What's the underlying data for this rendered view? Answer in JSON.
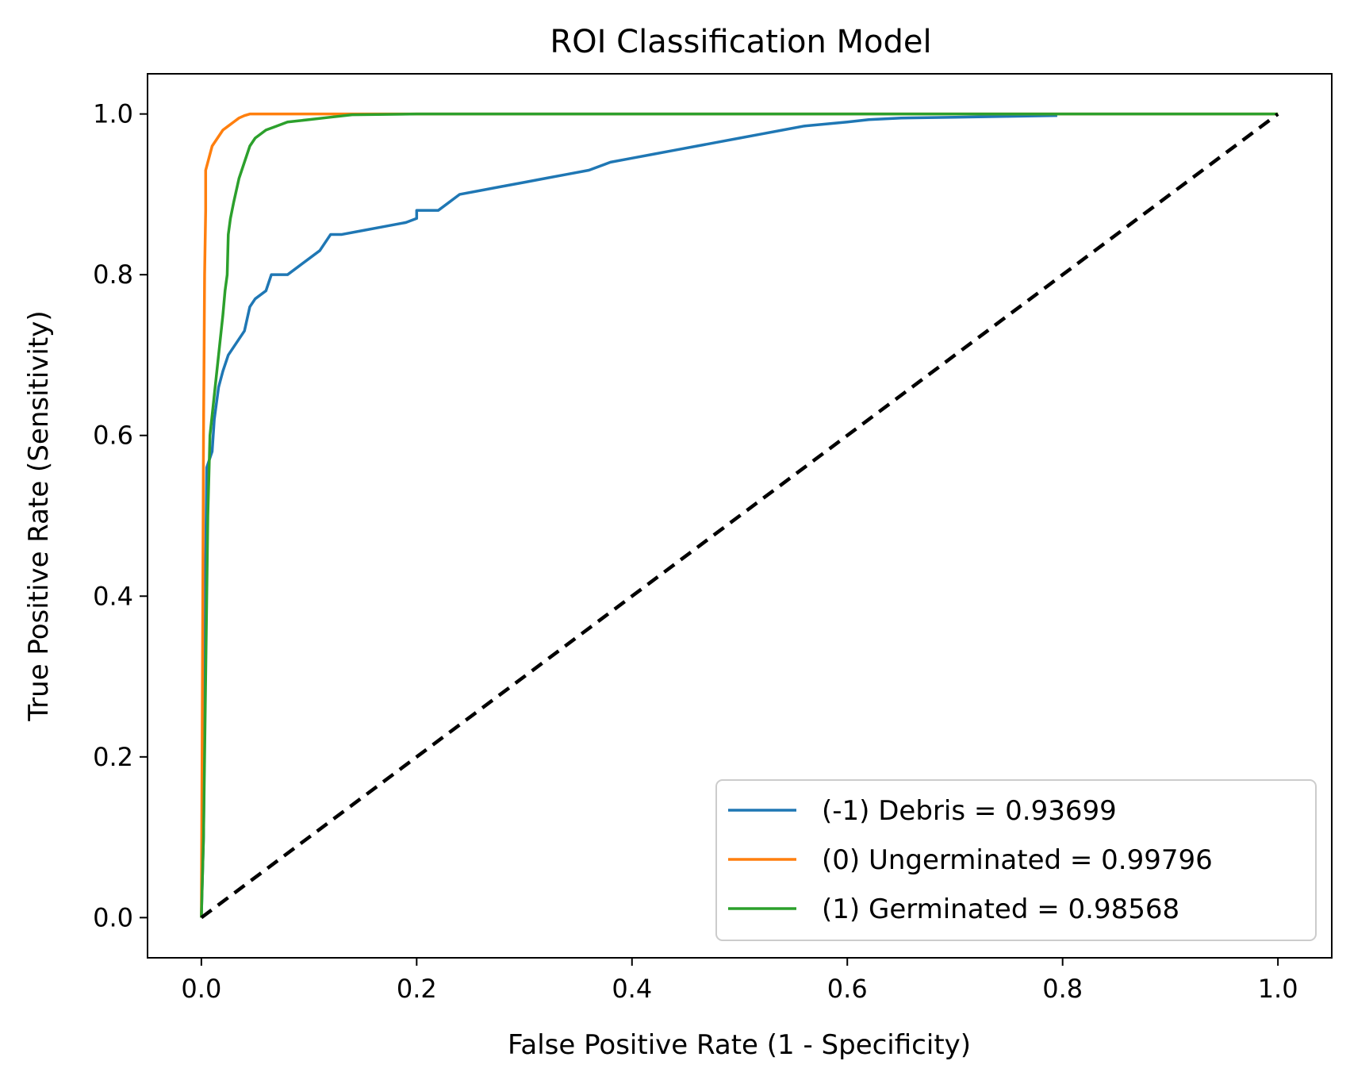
{
  "chart_data": {
    "type": "line",
    "title": "ROI Classification Model",
    "xlabel": "False Positive Rate (1 - Specificity)",
    "ylabel": "True Positive Rate (Sensitivity)",
    "xlim": [
      -0.05,
      1.05
    ],
    "ylim": [
      -0.05,
      1.05
    ],
    "xticks": [
      "0.0",
      "0.2",
      "0.4",
      "0.6",
      "0.8",
      "1.0"
    ],
    "yticks": [
      "0.0",
      "0.2",
      "0.4",
      "0.6",
      "0.8",
      "1.0"
    ],
    "grid": false,
    "legend_position": "lower-right",
    "series": [
      {
        "name": "(-1) Debris = 0.93699",
        "color": "#1f77b4",
        "points": [
          [
            0,
            0
          ],
          [
            0.002,
            0.1
          ],
          [
            0.003,
            0.25
          ],
          [
            0.004,
            0.45
          ],
          [
            0.005,
            0.56
          ],
          [
            0.01,
            0.58
          ],
          [
            0.012,
            0.62
          ],
          [
            0.016,
            0.66
          ],
          [
            0.02,
            0.68
          ],
          [
            0.025,
            0.7
          ],
          [
            0.03,
            0.71
          ],
          [
            0.04,
            0.73
          ],
          [
            0.045,
            0.76
          ],
          [
            0.05,
            0.77
          ],
          [
            0.06,
            0.78
          ],
          [
            0.065,
            0.8
          ],
          [
            0.08,
            0.8
          ],
          [
            0.09,
            0.81
          ],
          [
            0.1,
            0.82
          ],
          [
            0.11,
            0.83
          ],
          [
            0.115,
            0.84
          ],
          [
            0.12,
            0.85
          ],
          [
            0.13,
            0.85
          ],
          [
            0.15,
            0.855
          ],
          [
            0.17,
            0.86
          ],
          [
            0.19,
            0.865
          ],
          [
            0.2,
            0.87
          ],
          [
            0.2,
            0.88
          ],
          [
            0.22,
            0.88
          ],
          [
            0.23,
            0.89
          ],
          [
            0.24,
            0.9
          ],
          [
            0.26,
            0.905
          ],
          [
            0.28,
            0.91
          ],
          [
            0.3,
            0.915
          ],
          [
            0.32,
            0.92
          ],
          [
            0.34,
            0.925
          ],
          [
            0.36,
            0.93
          ],
          [
            0.38,
            0.94
          ],
          [
            0.4,
            0.945
          ],
          [
            0.42,
            0.95
          ],
          [
            0.44,
            0.955
          ],
          [
            0.46,
            0.96
          ],
          [
            0.48,
            0.965
          ],
          [
            0.5,
            0.97
          ],
          [
            0.52,
            0.975
          ],
          [
            0.54,
            0.98
          ],
          [
            0.56,
            0.985
          ],
          [
            0.6,
            0.99
          ],
          [
            0.62,
            0.993
          ],
          [
            0.65,
            0.995
          ],
          [
            0.7,
            0.996
          ],
          [
            0.75,
            0.997
          ],
          [
            0.795,
            0.998
          ]
        ]
      },
      {
        "name": "(0) Ungerminated = 0.99796",
        "color": "#ff7f0e",
        "points": [
          [
            0,
            0
          ],
          [
            0.001,
            0.3
          ],
          [
            0.002,
            0.6
          ],
          [
            0.003,
            0.8
          ],
          [
            0.004,
            0.88
          ],
          [
            0.004,
            0.93
          ],
          [
            0.006,
            0.94
          ],
          [
            0.008,
            0.95
          ],
          [
            0.01,
            0.96
          ],
          [
            0.015,
            0.97
          ],
          [
            0.02,
            0.98
          ],
          [
            0.025,
            0.985
          ],
          [
            0.03,
            0.99
          ],
          [
            0.035,
            0.995
          ],
          [
            0.04,
            0.998
          ],
          [
            0.045,
            1.0
          ],
          [
            0.1,
            1.0
          ],
          [
            0.3,
            1.0
          ],
          [
            1.0,
            1.0
          ]
        ]
      },
      {
        "name": "(1) Germinated = 0.98568",
        "color": "#2ca02c",
        "points": [
          [
            0,
            0
          ],
          [
            0.002,
            0.1
          ],
          [
            0.004,
            0.3
          ],
          [
            0.006,
            0.5
          ],
          [
            0.008,
            0.6
          ],
          [
            0.012,
            0.65
          ],
          [
            0.016,
            0.7
          ],
          [
            0.02,
            0.75
          ],
          [
            0.022,
            0.78
          ],
          [
            0.024,
            0.8
          ],
          [
            0.025,
            0.85
          ],
          [
            0.027,
            0.87
          ],
          [
            0.03,
            0.89
          ],
          [
            0.035,
            0.92
          ],
          [
            0.04,
            0.94
          ],
          [
            0.045,
            0.96
          ],
          [
            0.05,
            0.97
          ],
          [
            0.06,
            0.98
          ],
          [
            0.07,
            0.985
          ],
          [
            0.08,
            0.99
          ],
          [
            0.1,
            0.993
          ],
          [
            0.12,
            0.996
          ],
          [
            0.14,
            0.999
          ],
          [
            0.2,
            1.0
          ],
          [
            0.6,
            1.0
          ],
          [
            1.0,
            1.0
          ]
        ]
      },
      {
        "name": "",
        "color": "#000000",
        "dashed": true,
        "points": [
          [
            0,
            0
          ],
          [
            1,
            1
          ]
        ]
      }
    ]
  }
}
